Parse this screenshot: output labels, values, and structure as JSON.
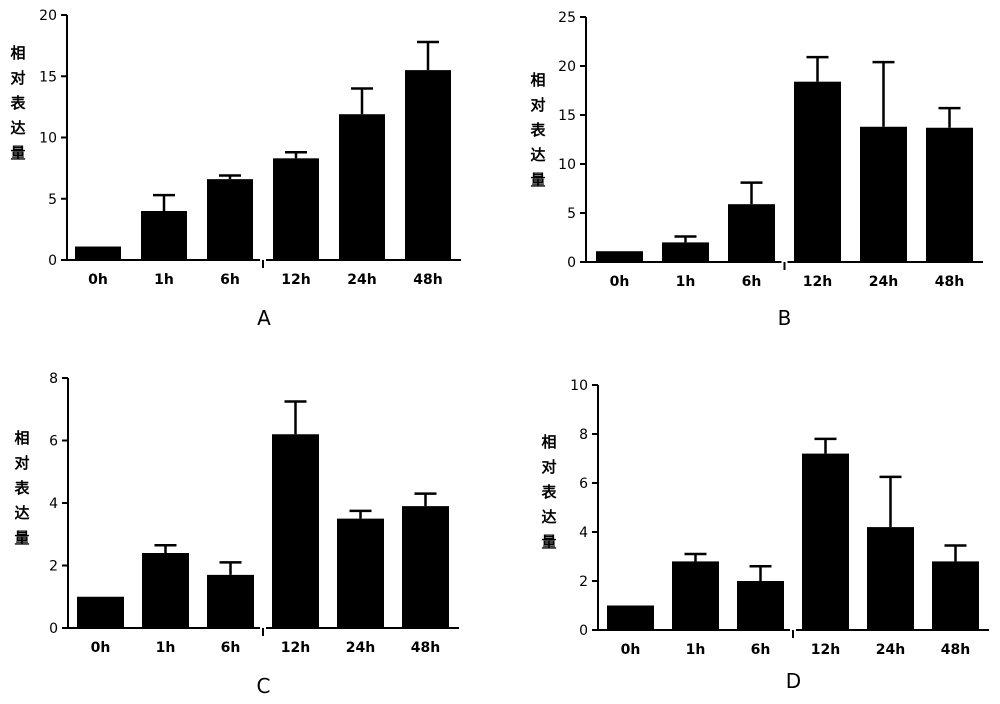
{
  "chart_data": [
    {
      "type": "bar",
      "panel_label": "A",
      "ylabel": "相对表达量",
      "categories": [
        "0h",
        "1h",
        "6h",
        "12h",
        "24h",
        "48h"
      ],
      "values": [
        1.1,
        4.0,
        6.6,
        8.3,
        11.9,
        15.5
      ],
      "error": [
        0,
        1.3,
        0.3,
        0.5,
        2.1,
        2.3
      ],
      "ylim": [
        0,
        20
      ],
      "yticks": [
        "0",
        "5",
        "10",
        "15",
        "20"
      ],
      "bar_color": "#000000",
      "grid": false
    },
    {
      "type": "bar",
      "panel_label": "B",
      "ylabel": "相对表达量",
      "categories": [
        "0h",
        "1h",
        "6h",
        "12h",
        "24h",
        "48h"
      ],
      "values": [
        1.1,
        2.0,
        5.9,
        18.4,
        13.8,
        13.7
      ],
      "error": [
        0,
        0.6,
        2.2,
        2.5,
        6.6,
        2.0
      ],
      "ylim": [
        0,
        25
      ],
      "yticks": [
        "0",
        "5",
        "10",
        "15",
        "20",
        "25"
      ],
      "bar_color": "#000000",
      "grid": false
    },
    {
      "type": "bar",
      "panel_label": "C",
      "ylabel": "相对表达量",
      "categories": [
        "0h",
        "1h",
        "6h",
        "12h",
        "24h",
        "48h"
      ],
      "values": [
        1.0,
        2.4,
        1.7,
        6.2,
        3.5,
        3.9
      ],
      "error": [
        0,
        0.25,
        0.4,
        1.05,
        0.25,
        0.4
      ],
      "ylim": [
        0,
        8
      ],
      "yticks": [
        "0",
        "2",
        "4",
        "6",
        "8"
      ],
      "bar_color": "#000000",
      "grid": false
    },
    {
      "type": "bar",
      "panel_label": "D",
      "ylabel": "相对表达量",
      "categories": [
        "0h",
        "1h",
        "6h",
        "12h",
        "24h",
        "48h"
      ],
      "values": [
        1.0,
        2.8,
        2.0,
        7.2,
        4.2,
        2.8
      ],
      "error": [
        0,
        0.3,
        0.6,
        0.6,
        2.05,
        0.65
      ],
      "ylim": [
        0,
        10
      ],
      "yticks": [
        "0",
        "2",
        "4",
        "6",
        "8",
        "10"
      ],
      "bar_color": "#000000",
      "grid": false
    }
  ]
}
